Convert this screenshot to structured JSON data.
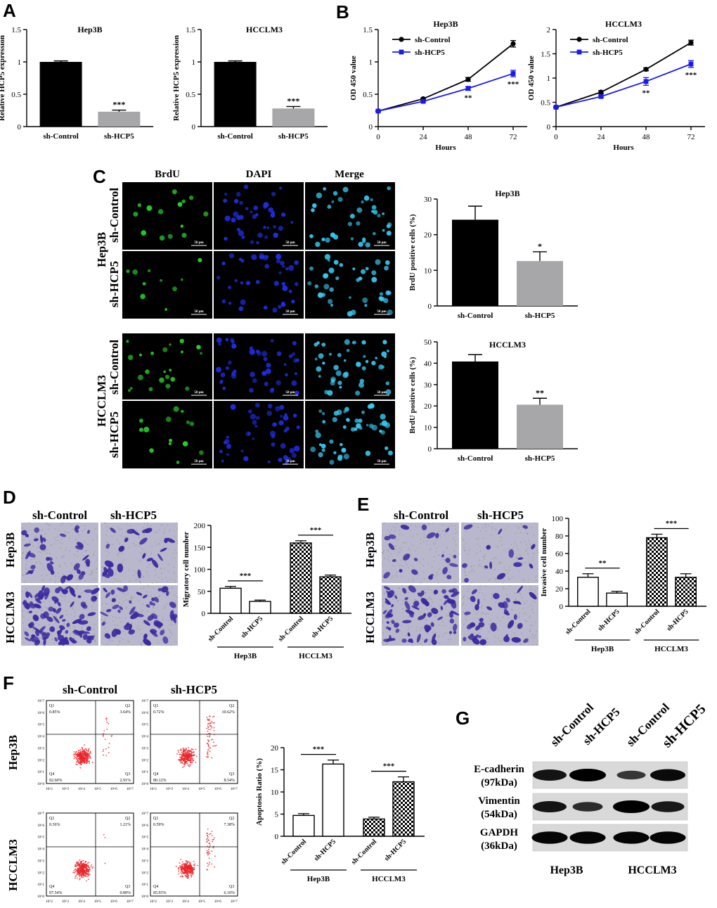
{
  "panels": {
    "A": "A",
    "B": "B",
    "C": "C",
    "D": "D",
    "E": "E",
    "F": "F",
    "G": "G"
  },
  "colors": {
    "black_bar": "#000000",
    "gray_bar": "#a7a7aa",
    "blue_series": "#1a1aee",
    "green_stain": "#28d22a",
    "blue_stain": "#1d2ee0",
    "cyan_stain": "#36c8f0",
    "crystal_violet": "#3b2aa0",
    "flow_red": "#e8262a"
  },
  "micrographs": {
    "columns": [
      "BrdU",
      "DAPI",
      "Merge"
    ],
    "scale_bar": "50 μm",
    "groups": [
      {
        "name": "Hep3B",
        "rows": [
          "sh-Control",
          "sh-HCP5"
        ]
      },
      {
        "name": "HCCLM3",
        "rows": [
          "sh-Control",
          "sh-HCP5"
        ]
      }
    ]
  },
  "transwell": {
    "D": {
      "columns": [
        "sh-Control",
        "sh-HCP5"
      ],
      "rows": [
        "Hep3B",
        "HCCLM3"
      ]
    },
    "E": {
      "columns": [
        "sh-Control",
        "sh-HCP5"
      ],
      "rows": [
        "Hep3B",
        "HCCLM3"
      ]
    }
  },
  "flow": {
    "columns": [
      "sh-Control",
      "sh-HCP5"
    ],
    "rows": [
      "Hep3B",
      "HCCLM3"
    ],
    "quadrant_labels": [
      "Q1",
      "Q2",
      "Q3",
      "Q4"
    ],
    "y_ticks": [
      "10^0",
      "10^1",
      "10^2",
      "10^3",
      "10^4",
      "10^5",
      "10^6",
      "10^7"
    ],
    "x_ticks": [
      "10^2",
      "10^3",
      "10^4",
      "10^5",
      "10^6",
      "10^7"
    ],
    "plots": [
      {
        "q1": "0.85%",
        "q2": "3.64%",
        "q3": "2.91%",
        "q4": "92.60%"
      },
      {
        "q1": "0.72%",
        "q2": "10.62%",
        "q3": "8.54%",
        "q4": "80.12%"
      },
      {
        "q1": "0.36%",
        "q2": "1.21%",
        "q3": "0.89%",
        "q4": "97.54%"
      },
      {
        "q1": "0.59%",
        "q2": "7.38%",
        "q3": "6.10%",
        "q4": "85.93%"
      }
    ]
  },
  "western": {
    "lanes": [
      "sh-Control",
      "sh-HCP5",
      "sh-Control",
      "sh-HCP5"
    ],
    "proteins": [
      {
        "name": "E-cadherin",
        "kda": "(97kDa)",
        "intensity": [
          0.8,
          1.0,
          0.45,
          0.9
        ]
      },
      {
        "name": "Vimentin",
        "kda": "(54kDa)",
        "intensity": [
          0.8,
          0.55,
          1.0,
          0.75
        ]
      },
      {
        "name": "GAPDH",
        "kda": "(36kDa)",
        "intensity": [
          0.95,
          0.95,
          0.95,
          0.95
        ]
      }
    ],
    "cell_lines": [
      "Hep3B",
      "HCCLM3"
    ]
  },
  "chart_data": [
    {
      "id": "A-Hep3B",
      "type": "bar",
      "title": "Hep3B",
      "ylabel": "Relative HCP5 expression",
      "xlabel": "",
      "categories": [
        "sh-Control",
        "sh-HCP5"
      ],
      "values": [
        1.0,
        0.23
      ],
      "errors": [
        0.015,
        0.025
      ],
      "significance": [
        "",
        "***"
      ],
      "ylim": [
        0,
        1.5
      ],
      "yticks": [
        0.0,
        0.5,
        1.0,
        1.5
      ]
    },
    {
      "id": "A-HCCLM3",
      "type": "bar",
      "title": "HCCLM3",
      "ylabel": "Relative HCP5 expression",
      "xlabel": "",
      "categories": [
        "sh-Control",
        "sh-HCP5"
      ],
      "values": [
        1.0,
        0.28
      ],
      "errors": [
        0.015,
        0.03
      ],
      "significance": [
        "",
        "***"
      ],
      "ylim": [
        0,
        1.5
      ],
      "yticks": [
        0.0,
        0.5,
        1.0,
        1.5
      ]
    },
    {
      "id": "B-Hep3B",
      "type": "line",
      "title": "Hep3B",
      "xlabel": "Hours",
      "ylabel": "OD 450 value",
      "x": [
        0,
        24,
        48,
        72
      ],
      "series": [
        {
          "name": "sh-Control",
          "values": [
            0.24,
            0.43,
            0.73,
            1.28
          ],
          "errors": [
            0.01,
            0.01,
            0.03,
            0.05
          ],
          "marker": "circle"
        },
        {
          "name": "sh-HCP5",
          "values": [
            0.24,
            0.39,
            0.59,
            0.82
          ],
          "errors": [
            0.01,
            0.01,
            0.03,
            0.05
          ],
          "marker": "square"
        }
      ],
      "significance": [
        "",
        "",
        "**",
        "***"
      ],
      "ylim": [
        0,
        1.5
      ],
      "yticks": [
        0.0,
        0.5,
        1.0,
        1.5
      ],
      "xticks": [
        0,
        24,
        48,
        72
      ]
    },
    {
      "id": "B-HCCLM3",
      "type": "line",
      "title": "HCCLM3",
      "xlabel": "Hours",
      "ylabel": "OD 450 value",
      "x": [
        0,
        24,
        48,
        72
      ],
      "series": [
        {
          "name": "sh-Control",
          "values": [
            0.4,
            0.71,
            1.18,
            1.73
          ],
          "errors": [
            0.01,
            0.03,
            0.03,
            0.05
          ],
          "marker": "circle"
        },
        {
          "name": "sh-HCP5",
          "values": [
            0.4,
            0.62,
            0.93,
            1.29
          ],
          "errors": [
            0.01,
            0.02,
            0.08,
            0.07
          ],
          "marker": "square"
        }
      ],
      "significance": [
        "",
        "",
        "**",
        "***"
      ],
      "ylim": [
        0,
        2.0
      ],
      "yticks": [
        0.0,
        0.5,
        1.0,
        1.5,
        2.0
      ],
      "xticks": [
        0,
        24,
        48,
        72
      ]
    },
    {
      "id": "C-Hep3B",
      "type": "bar",
      "title": "Hep3B",
      "ylabel": "BrdU positive cells (%)",
      "xlabel": "",
      "categories": [
        "sh-Control",
        "sh-HCP5"
      ],
      "values": [
        24.2,
        12.6
      ],
      "errors": [
        3.8,
        2.6
      ],
      "significance": [
        "",
        "*"
      ],
      "ylim": [
        0,
        30
      ],
      "yticks": [
        0,
        10,
        20,
        30
      ]
    },
    {
      "id": "C-HCCLM3",
      "type": "bar",
      "title": "HCCLM3",
      "ylabel": "BrdU positive cells (%)",
      "xlabel": "",
      "categories": [
        "sh-Control",
        "sh-HCP5"
      ],
      "values": [
        40.8,
        20.6
      ],
      "errors": [
        3.2,
        3.0
      ],
      "significance": [
        "",
        "**"
      ],
      "ylim": [
        0,
        50
      ],
      "yticks": [
        0,
        10,
        20,
        30,
        40,
        50
      ]
    },
    {
      "id": "D",
      "type": "bar",
      "title": "",
      "ylabel": "Migratory cell number",
      "xlabel": "",
      "categories": [
        "sh-Control",
        "sh-HCP5",
        "sh-Control",
        "sh-HCP5"
      ],
      "groups": [
        "Hep3B",
        "HCCLM3"
      ],
      "values": [
        57,
        27,
        160,
        83
      ],
      "errors": [
        4,
        3,
        5,
        4
      ],
      "comparisons": [
        "***",
        "***"
      ],
      "ylim": [
        0,
        200
      ],
      "yticks": [
        0,
        50,
        100,
        150,
        200
      ]
    },
    {
      "id": "E",
      "type": "bar",
      "title": "",
      "ylabel": "Invasive cell number",
      "xlabel": "",
      "categories": [
        "sh-Control",
        "sh-HCP5",
        "sh-Control",
        "sh-HCP5"
      ],
      "groups": [
        "Hep3B",
        "HCCLM3"
      ],
      "values": [
        33,
        15,
        78,
        33
      ],
      "errors": [
        4,
        2,
        4,
        4
      ],
      "comparisons": [
        "**",
        "***"
      ],
      "ylim": [
        0,
        100
      ],
      "yticks": [
        0,
        20,
        40,
        60,
        80,
        100
      ]
    },
    {
      "id": "F",
      "type": "bar",
      "title": "",
      "ylabel": "Apoptosis Ratio (%)",
      "xlabel": "",
      "categories": [
        "sh-Control",
        "sh-HCP5",
        "sh-Control",
        "sh-HCP5"
      ],
      "groups": [
        "Hep3B",
        "HCCLM3"
      ],
      "values": [
        4.7,
        16.3,
        3.9,
        12.3
      ],
      "errors": [
        0.4,
        0.9,
        0.4,
        1.1
      ],
      "comparisons": [
        "***",
        "***"
      ],
      "ylim": [
        0,
        20
      ],
      "yticks": [
        0,
        5,
        10,
        15,
        20
      ]
    }
  ]
}
